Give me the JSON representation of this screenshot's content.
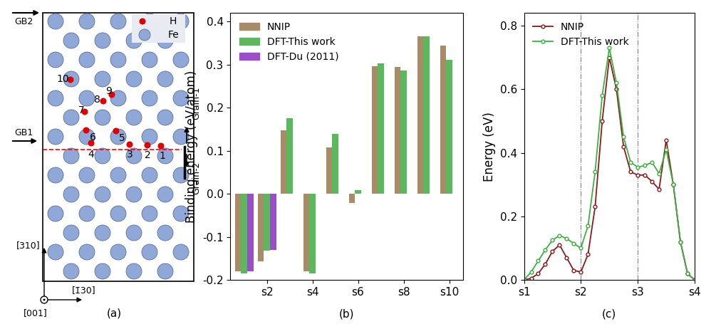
{
  "diagram": {
    "panel_label": "(a)",
    "boundaries": [
      "GB2",
      "GB1"
    ],
    "species": [
      "H",
      "Fe"
    ],
    "sites": [
      1,
      2,
      3,
      4,
      5,
      6,
      7,
      8,
      9,
      10
    ],
    "grains": [
      "Grain-1",
      "Grain-2"
    ],
    "directions": [
      "[310]",
      "[1̄30]",
      "[001]"
    ]
  },
  "chart_data": [
    {
      "type": "bar",
      "panel_label": "(b)",
      "y_label": "Binding energy (eV/atom)",
      "categories": [
        null,
        "s2",
        null,
        "s4",
        null,
        "s6",
        null,
        "s8",
        null,
        "s10"
      ],
      "series": [
        {
          "name": "NNIP",
          "color": "#a68c68",
          "values": [
            -0.18,
            -0.157,
            0.148,
            -0.18,
            0.107,
            -0.022,
            0.297,
            0.295,
            0.365,
            0.345
          ]
        },
        {
          "name": "DFT-This work",
          "color": "#5cb85c",
          "values": [
            -0.185,
            -0.132,
            0.175,
            -0.185,
            0.14,
            0.008,
            0.303,
            0.287,
            0.365,
            0.312
          ]
        },
        {
          "name": "DFT-Du (2011)",
          "color": "#9b4fc4",
          "values": [
            -0.18,
            -0.13,
            null,
            null,
            null,
            null,
            null,
            null,
            null,
            null
          ]
        }
      ],
      "ylim": [
        -0.2,
        0.42
      ],
      "yticks": [
        -0.2,
        -0.1,
        0.0,
        0.1,
        0.2,
        0.3,
        0.4
      ],
      "legend": "upper left"
    },
    {
      "type": "line",
      "panel_label": "(c)",
      "y_label": "Energy (eV)",
      "x": [
        0.0,
        0.125,
        0.25,
        0.375,
        0.5,
        0.625,
        0.75,
        0.875,
        1.0,
        1.125,
        1.25,
        1.375,
        1.5,
        1.625,
        1.75,
        1.875,
        2.0,
        2.125,
        2.25,
        2.375,
        2.5,
        2.625,
        2.75,
        2.875,
        3.0
      ],
      "series": [
        {
          "name": "NNIP",
          "color": "#8b1a1a",
          "marker": "o",
          "values": [
            0.0,
            0.005,
            0.02,
            0.05,
            0.09,
            0.11,
            0.07,
            0.03,
            0.025,
            0.08,
            0.23,
            0.5,
            0.7,
            0.6,
            0.42,
            0.34,
            0.33,
            0.33,
            0.31,
            0.285,
            0.44,
            0.3,
            0.12,
            0.02,
            0.0
          ]
        },
        {
          "name": "DFT-This work",
          "color": "#3cb043",
          "marker": "o",
          "values": [
            0.0,
            0.025,
            0.06,
            0.095,
            0.125,
            0.14,
            0.13,
            0.115,
            0.1,
            0.17,
            0.34,
            0.58,
            0.73,
            0.62,
            0.45,
            0.37,
            0.355,
            0.36,
            0.37,
            0.335,
            0.41,
            0.3,
            0.12,
            0.02,
            0.0
          ]
        }
      ],
      "vlines": [
        1,
        2
      ],
      "xlim": [
        0,
        3
      ],
      "xticks": [
        {
          "value": 0,
          "label": "s1"
        },
        {
          "value": 1,
          "label": "s2"
        },
        {
          "value": 2,
          "label": "s3"
        },
        {
          "value": 3,
          "label": "s4"
        }
      ],
      "ylim": [
        0,
        0.84
      ],
      "yticks": [
        0.0,
        0.2,
        0.4,
        0.6,
        0.8
      ],
      "legend": "upper left"
    }
  ]
}
